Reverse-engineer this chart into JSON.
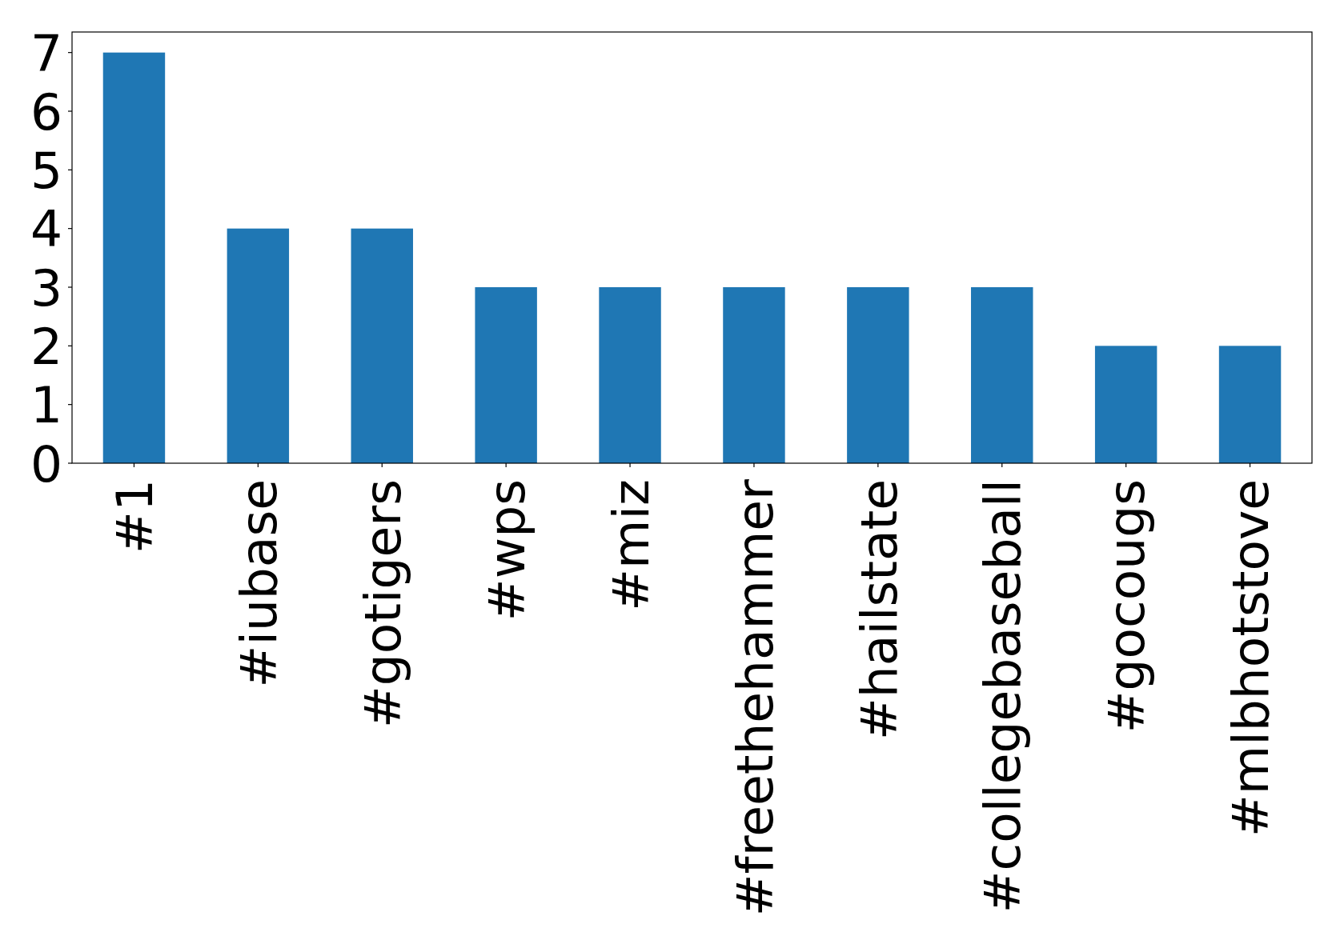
{
  "chart_data": {
    "type": "bar",
    "categories": [
      "#1",
      "#iubase",
      "#gotigers",
      "#wps",
      "#miz",
      "#freethehammer",
      "#hailstate",
      "#collegebaseball",
      "#gocougs",
      "#mlbhotstove"
    ],
    "values": [
      7,
      4,
      4,
      3,
      3,
      3,
      3,
      3,
      2,
      2
    ],
    "color": "#1f77b4",
    "ylim": [
      0,
      7.35
    ],
    "yticks": [
      0,
      1,
      2,
      3,
      4,
      5,
      6,
      7
    ]
  }
}
